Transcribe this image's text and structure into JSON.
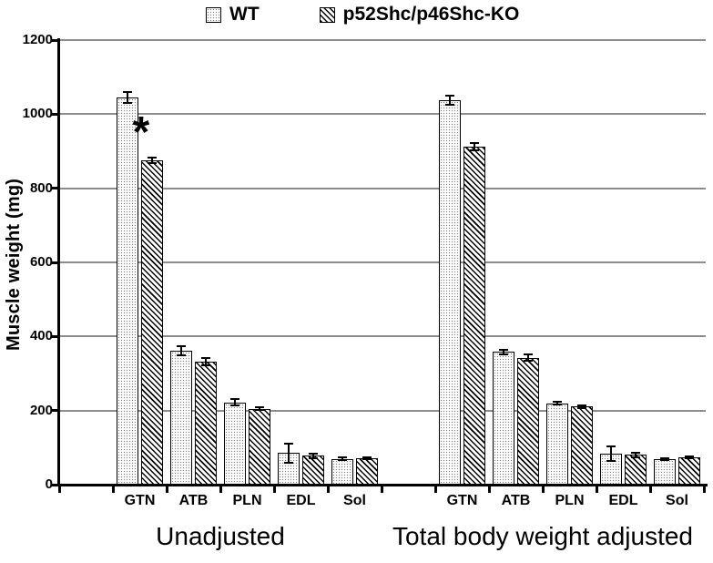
{
  "chart_data": {
    "type": "bar",
    "title": "",
    "ylabel": "Muscle weight (mg)",
    "xlabel": "",
    "ylim": [
      0,
      1200
    ],
    "yticks": [
      0,
      200,
      400,
      600,
      800,
      1000,
      1200
    ],
    "grid": true,
    "legend_position": "top",
    "groups": [
      {
        "label": "Unadjusted",
        "categories": [
          "GTN",
          "ATB",
          "PLN",
          "EDL",
          "Sol"
        ]
      },
      {
        "label": "Total body weight adjusted",
        "categories": [
          "GTN",
          "ATB",
          "PLN",
          "EDL",
          "Sol"
        ]
      }
    ],
    "series": [
      {
        "name": "WT",
        "fill": "fill-dots",
        "values_by_group": [
          [
            1045,
            362,
            222,
            85,
            70
          ],
          [
            1038,
            358,
            220,
            84,
            69
          ]
        ],
        "errors_by_group": [
          [
            15,
            12,
            8,
            25,
            3
          ],
          [
            12,
            6,
            4,
            20,
            2
          ]
        ]
      },
      {
        "name": "p52Shc/p46Shc-KO",
        "fill": "fill-hatch",
        "values_by_group": [
          [
            875,
            331,
            205,
            78,
            72
          ],
          [
            912,
            343,
            211,
            80,
            74
          ]
        ],
        "errors_by_group": [
          [
            8,
            10,
            4,
            6,
            3
          ],
          [
            10,
            8,
            4,
            6,
            3
          ]
        ]
      }
    ],
    "annotations": [
      {
        "text": "*",
        "group": 0,
        "series": 1,
        "category": 0
      }
    ],
    "colors": {
      "background": "#ffffff",
      "axis": "#000000",
      "gridline": "#8c8c8c",
      "bar_border": "#000000",
      "text": "#000000"
    }
  }
}
